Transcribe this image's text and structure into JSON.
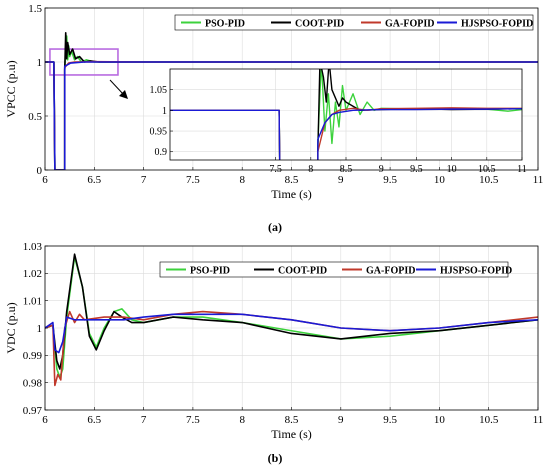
{
  "figure": {
    "label_a": "(a)",
    "label_b": "(b)"
  },
  "chart_data": [
    {
      "type": "line",
      "panel": "a",
      "xlabel": "Time (s)",
      "ylabel": "VPCC (p.u)",
      "xlim": [
        6,
        11
      ],
      "ylim": [
        0,
        1.5
      ],
      "xticks": [
        "6",
        "6.5",
        "7",
        "7.5",
        "8",
        "8.5",
        "9",
        "9.5",
        "10",
        "10.5",
        "11"
      ],
      "yticks": [
        "0",
        "0.5",
        "1",
        "1.5"
      ],
      "grid": true,
      "legend_position": "top-right",
      "highlight_region": {
        "x": [
          6.05,
          6.74
        ],
        "y": [
          0.88,
          1.12
        ]
      },
      "series": [
        {
          "name": "PSO-PID",
          "color": "#3cd23c",
          "points": [
            [
              6,
              1.0
            ],
            [
              6.09,
              1.0
            ],
            [
              6.1,
              0.0
            ],
            [
              6.2,
              0.0
            ],
            [
              6.2,
              0.93
            ],
            [
              6.22,
              1.24
            ],
            [
              6.23,
              1.02
            ],
            [
              6.24,
              1.15
            ],
            [
              6.25,
              1.05
            ],
            [
              6.27,
              1.1
            ],
            [
              6.3,
              1.02
            ],
            [
              6.33,
              1.05
            ],
            [
              6.37,
              1.0
            ],
            [
              6.42,
              1.02
            ],
            [
              6.5,
              1.0
            ],
            [
              11,
              1.0
            ]
          ]
        },
        {
          "name": "COOT-PID",
          "color": "#000000",
          "points": [
            [
              6,
              1.0
            ],
            [
              6.09,
              1.0
            ],
            [
              6.1,
              0.0
            ],
            [
              6.2,
              0.0
            ],
            [
              6.2,
              0.92
            ],
            [
              6.21,
              1.27
            ],
            [
              6.22,
              1.03
            ],
            [
              6.23,
              1.18
            ],
            [
              6.25,
              1.07
            ],
            [
              6.28,
              1.12
            ],
            [
              6.31,
              1.03
            ],
            [
              6.35,
              1.05
            ],
            [
              6.4,
              1.0
            ],
            [
              6.46,
              1.01
            ],
            [
              6.55,
              1.0
            ],
            [
              11,
              1.0
            ]
          ]
        },
        {
          "name": "GA-FOPID",
          "color": "#c0392b",
          "points": [
            [
              6,
              1.0
            ],
            [
              6.09,
              1.0
            ],
            [
              6.1,
              0.0
            ],
            [
              6.2,
              0.0
            ],
            [
              6.2,
              0.95
            ],
            [
              6.24,
              0.99
            ],
            [
              6.3,
              1.0
            ],
            [
              6.5,
              1.003
            ],
            [
              7,
              1.0
            ],
            [
              11,
              1.0
            ]
          ]
        },
        {
          "name": "HJSPSO-FOPID",
          "color": "#1a1ad6",
          "points": [
            [
              6,
              1.0
            ],
            [
              6.09,
              1.0
            ],
            [
              6.1,
              0.0
            ],
            [
              6.2,
              0.0
            ],
            [
              6.2,
              0.96
            ],
            [
              6.26,
              0.99
            ],
            [
              6.4,
              1.0
            ],
            [
              7,
              1.0
            ],
            [
              11,
              1.0
            ]
          ]
        }
      ]
    },
    {
      "type": "line",
      "panel": "a-inset",
      "xlim": [
        6,
        11
      ],
      "ylim": [
        0.88,
        1.1
      ],
      "xticks": [
        "7.5",
        "8",
        "8.5",
        "9",
        "9.5",
        "10",
        "10.5",
        "11"
      ],
      "yticks": [
        "0.9",
        "0.95",
        "1",
        "1.05"
      ],
      "xtick_values": [
        7.5,
        8,
        8.5,
        9,
        9.5,
        10,
        10.5,
        11
      ],
      "ytick_values": [
        0.9,
        0.95,
        1,
        1.05
      ],
      "grid": true,
      "series": [
        {
          "name": "PSO-PID",
          "color": "#3cd23c",
          "points": [
            [
              6,
              1.0
            ],
            [
              7.55,
              1.0
            ],
            [
              7.56,
              0.85
            ],
            [
              8.1,
              0.85
            ],
            [
              8.1,
              0.92
            ],
            [
              8.15,
              1.12
            ],
            [
              8.2,
              0.95
            ],
            [
              8.25,
              1.04
            ],
            [
              8.3,
              0.92
            ],
            [
              8.35,
              1.02
            ],
            [
              8.4,
              0.96
            ],
            [
              8.45,
              1.06
            ],
            [
              8.5,
              1.0
            ],
            [
              8.6,
              1.04
            ],
            [
              8.7,
              0.99
            ],
            [
              8.8,
              1.02
            ],
            [
              8.9,
              1.0
            ],
            [
              9.0,
              1.005
            ],
            [
              9.5,
              1.003
            ],
            [
              10,
              1.004
            ],
            [
              10.5,
              1.003
            ],
            [
              10.8,
              0.998
            ],
            [
              11,
              1.002
            ]
          ]
        },
        {
          "name": "COOT-PID",
          "color": "#000000",
          "points": [
            [
              6,
              1.0
            ],
            [
              7.55,
              1.0
            ],
            [
              7.56,
              0.85
            ],
            [
              8.1,
              0.85
            ],
            [
              8.1,
              0.9
            ],
            [
              8.13,
              1.12
            ],
            [
              8.18,
              1.08
            ],
            [
              8.22,
              1.02
            ],
            [
              8.26,
              1.12
            ],
            [
              8.3,
              1.05
            ],
            [
              8.35,
              1.03
            ],
            [
              8.4,
              1.01
            ],
            [
              8.45,
              1.03
            ],
            [
              8.5,
              1.02
            ],
            [
              8.6,
              1.01
            ],
            [
              8.7,
              1.0
            ],
            [
              9.0,
              1.002
            ],
            [
              9.5,
              1.004
            ],
            [
              10,
              1.002
            ],
            [
              10.5,
              1.003
            ],
            [
              11,
              1.004
            ]
          ]
        },
        {
          "name": "GA-FOPID",
          "color": "#c0392b",
          "points": [
            [
              6,
              1.0
            ],
            [
              7.55,
              1.0
            ],
            [
              7.56,
              0.85
            ],
            [
              8.1,
              0.85
            ],
            [
              8.1,
              0.9
            ],
            [
              8.2,
              0.97
            ],
            [
              8.3,
              0.99
            ],
            [
              8.4,
              1.0
            ],
            [
              8.6,
              1.005
            ],
            [
              8.8,
              1.0
            ],
            [
              9.0,
              1.004
            ],
            [
              9.5,
              1.005
            ],
            [
              10,
              1.006
            ],
            [
              10.5,
              1.005
            ],
            [
              11,
              1.005
            ]
          ]
        },
        {
          "name": "HJSPSO-FOPID",
          "color": "#1a1ad6",
          "points": [
            [
              6,
              1.0
            ],
            [
              7.55,
              1.0
            ],
            [
              7.56,
              0.85
            ],
            [
              8.1,
              0.85
            ],
            [
              8.1,
              0.93
            ],
            [
              8.2,
              0.97
            ],
            [
              8.3,
              0.99
            ],
            [
              8.4,
              0.995
            ],
            [
              8.6,
              1.0
            ],
            [
              9.0,
              1.002
            ],
            [
              9.5,
              1.002
            ],
            [
              10,
              1.003
            ],
            [
              10.5,
              1.003
            ],
            [
              11,
              1.004
            ]
          ]
        }
      ]
    },
    {
      "type": "line",
      "panel": "b",
      "xlabel": "Time (s)",
      "ylabel": "VDC (p.u)",
      "xlim": [
        6,
        11
      ],
      "ylim": [
        0.97,
        1.03
      ],
      "xticks": [
        "6",
        "6.5",
        "7",
        "7.5",
        "8",
        "8.5",
        "9",
        "9.5",
        "10",
        "10.5",
        "11"
      ],
      "yticks": [
        "0.97",
        "0.98",
        "0.99",
        "1",
        "1.01",
        "1.02",
        "1.03"
      ],
      "grid": true,
      "legend_position": "top-right",
      "series": [
        {
          "name": "PSO-PID",
          "color": "#3cd23c",
          "points": [
            [
              6,
              1.0
            ],
            [
              6.08,
              1.001
            ],
            [
              6.12,
              0.985
            ],
            [
              6.15,
              0.982
            ],
            [
              6.18,
              0.985
            ],
            [
              6.22,
              1.004
            ],
            [
              6.3,
              1.026
            ],
            [
              6.38,
              1.015
            ],
            [
              6.45,
              0.998
            ],
            [
              6.52,
              0.993
            ],
            [
              6.6,
              1.0
            ],
            [
              6.7,
              1.006
            ],
            [
              6.78,
              1.007
            ],
            [
              6.88,
              1.003
            ],
            [
              7.0,
              1.002
            ],
            [
              7.3,
              1.004
            ],
            [
              7.6,
              1.004
            ],
            [
              8.0,
              1.002
            ],
            [
              8.5,
              0.999
            ],
            [
              9.0,
              0.996
            ],
            [
              9.5,
              0.997
            ],
            [
              10,
              0.999
            ],
            [
              10.5,
              1.001
            ],
            [
              11,
              1.003
            ]
          ]
        },
        {
          "name": "COOT-PID",
          "color": "#000000",
          "points": [
            [
              6,
              1.0
            ],
            [
              6.08,
              1.001
            ],
            [
              6.12,
              0.988
            ],
            [
              6.15,
              0.985
            ],
            [
              6.18,
              0.99
            ],
            [
              6.22,
              1.006
            ],
            [
              6.3,
              1.027
            ],
            [
              6.38,
              1.015
            ],
            [
              6.45,
              0.997
            ],
            [
              6.52,
              0.992
            ],
            [
              6.6,
              0.999
            ],
            [
              6.7,
              1.006
            ],
            [
              6.78,
              1.004
            ],
            [
              6.88,
              1.002
            ],
            [
              7.0,
              1.002
            ],
            [
              7.3,
              1.004
            ],
            [
              7.6,
              1.003
            ],
            [
              8.0,
              1.002
            ],
            [
              8.5,
              0.998
            ],
            [
              9.0,
              0.996
            ],
            [
              9.5,
              0.998
            ],
            [
              10,
              0.999
            ],
            [
              10.5,
              1.001
            ],
            [
              11,
              1.003
            ]
          ]
        },
        {
          "name": "GA-FOPID",
          "color": "#c0392b",
          "points": [
            [
              6,
              1.0
            ],
            [
              6.08,
              1.001
            ],
            [
              6.1,
              0.979
            ],
            [
              6.13,
              0.983
            ],
            [
              6.16,
              0.981
            ],
            [
              6.2,
              1.0
            ],
            [
              6.25,
              1.006
            ],
            [
              6.3,
              1.002
            ],
            [
              6.35,
              1.005
            ],
            [
              6.4,
              1.003
            ],
            [
              6.6,
              1.004
            ],
            [
              6.8,
              1.004
            ],
            [
              7.0,
              1.003
            ],
            [
              7.3,
              1.005
            ],
            [
              7.6,
              1.006
            ],
            [
              8.0,
              1.005
            ],
            [
              8.5,
              1.003
            ],
            [
              9.0,
              1.0
            ],
            [
              9.5,
              0.999
            ],
            [
              10,
              1.0
            ],
            [
              10.5,
              1.002
            ],
            [
              11,
              1.004
            ]
          ]
        },
        {
          "name": "HJSPSO-FOPID",
          "color": "#1a1ad6",
          "points": [
            [
              6,
              1.0
            ],
            [
              6.08,
              1.002
            ],
            [
              6.1,
              0.992
            ],
            [
              6.14,
              0.991
            ],
            [
              6.18,
              0.995
            ],
            [
              6.22,
              1.004
            ],
            [
              6.3,
              1.003
            ],
            [
              6.5,
              1.003
            ],
            [
              6.8,
              1.003
            ],
            [
              7.0,
              1.004
            ],
            [
              7.3,
              1.005
            ],
            [
              7.6,
              1.005
            ],
            [
              8.0,
              1.005
            ],
            [
              8.5,
              1.003
            ],
            [
              9.0,
              1.0
            ],
            [
              9.5,
              0.999
            ],
            [
              10,
              1.0
            ],
            [
              10.5,
              1.002
            ],
            [
              11,
              1.003
            ]
          ]
        }
      ]
    }
  ]
}
